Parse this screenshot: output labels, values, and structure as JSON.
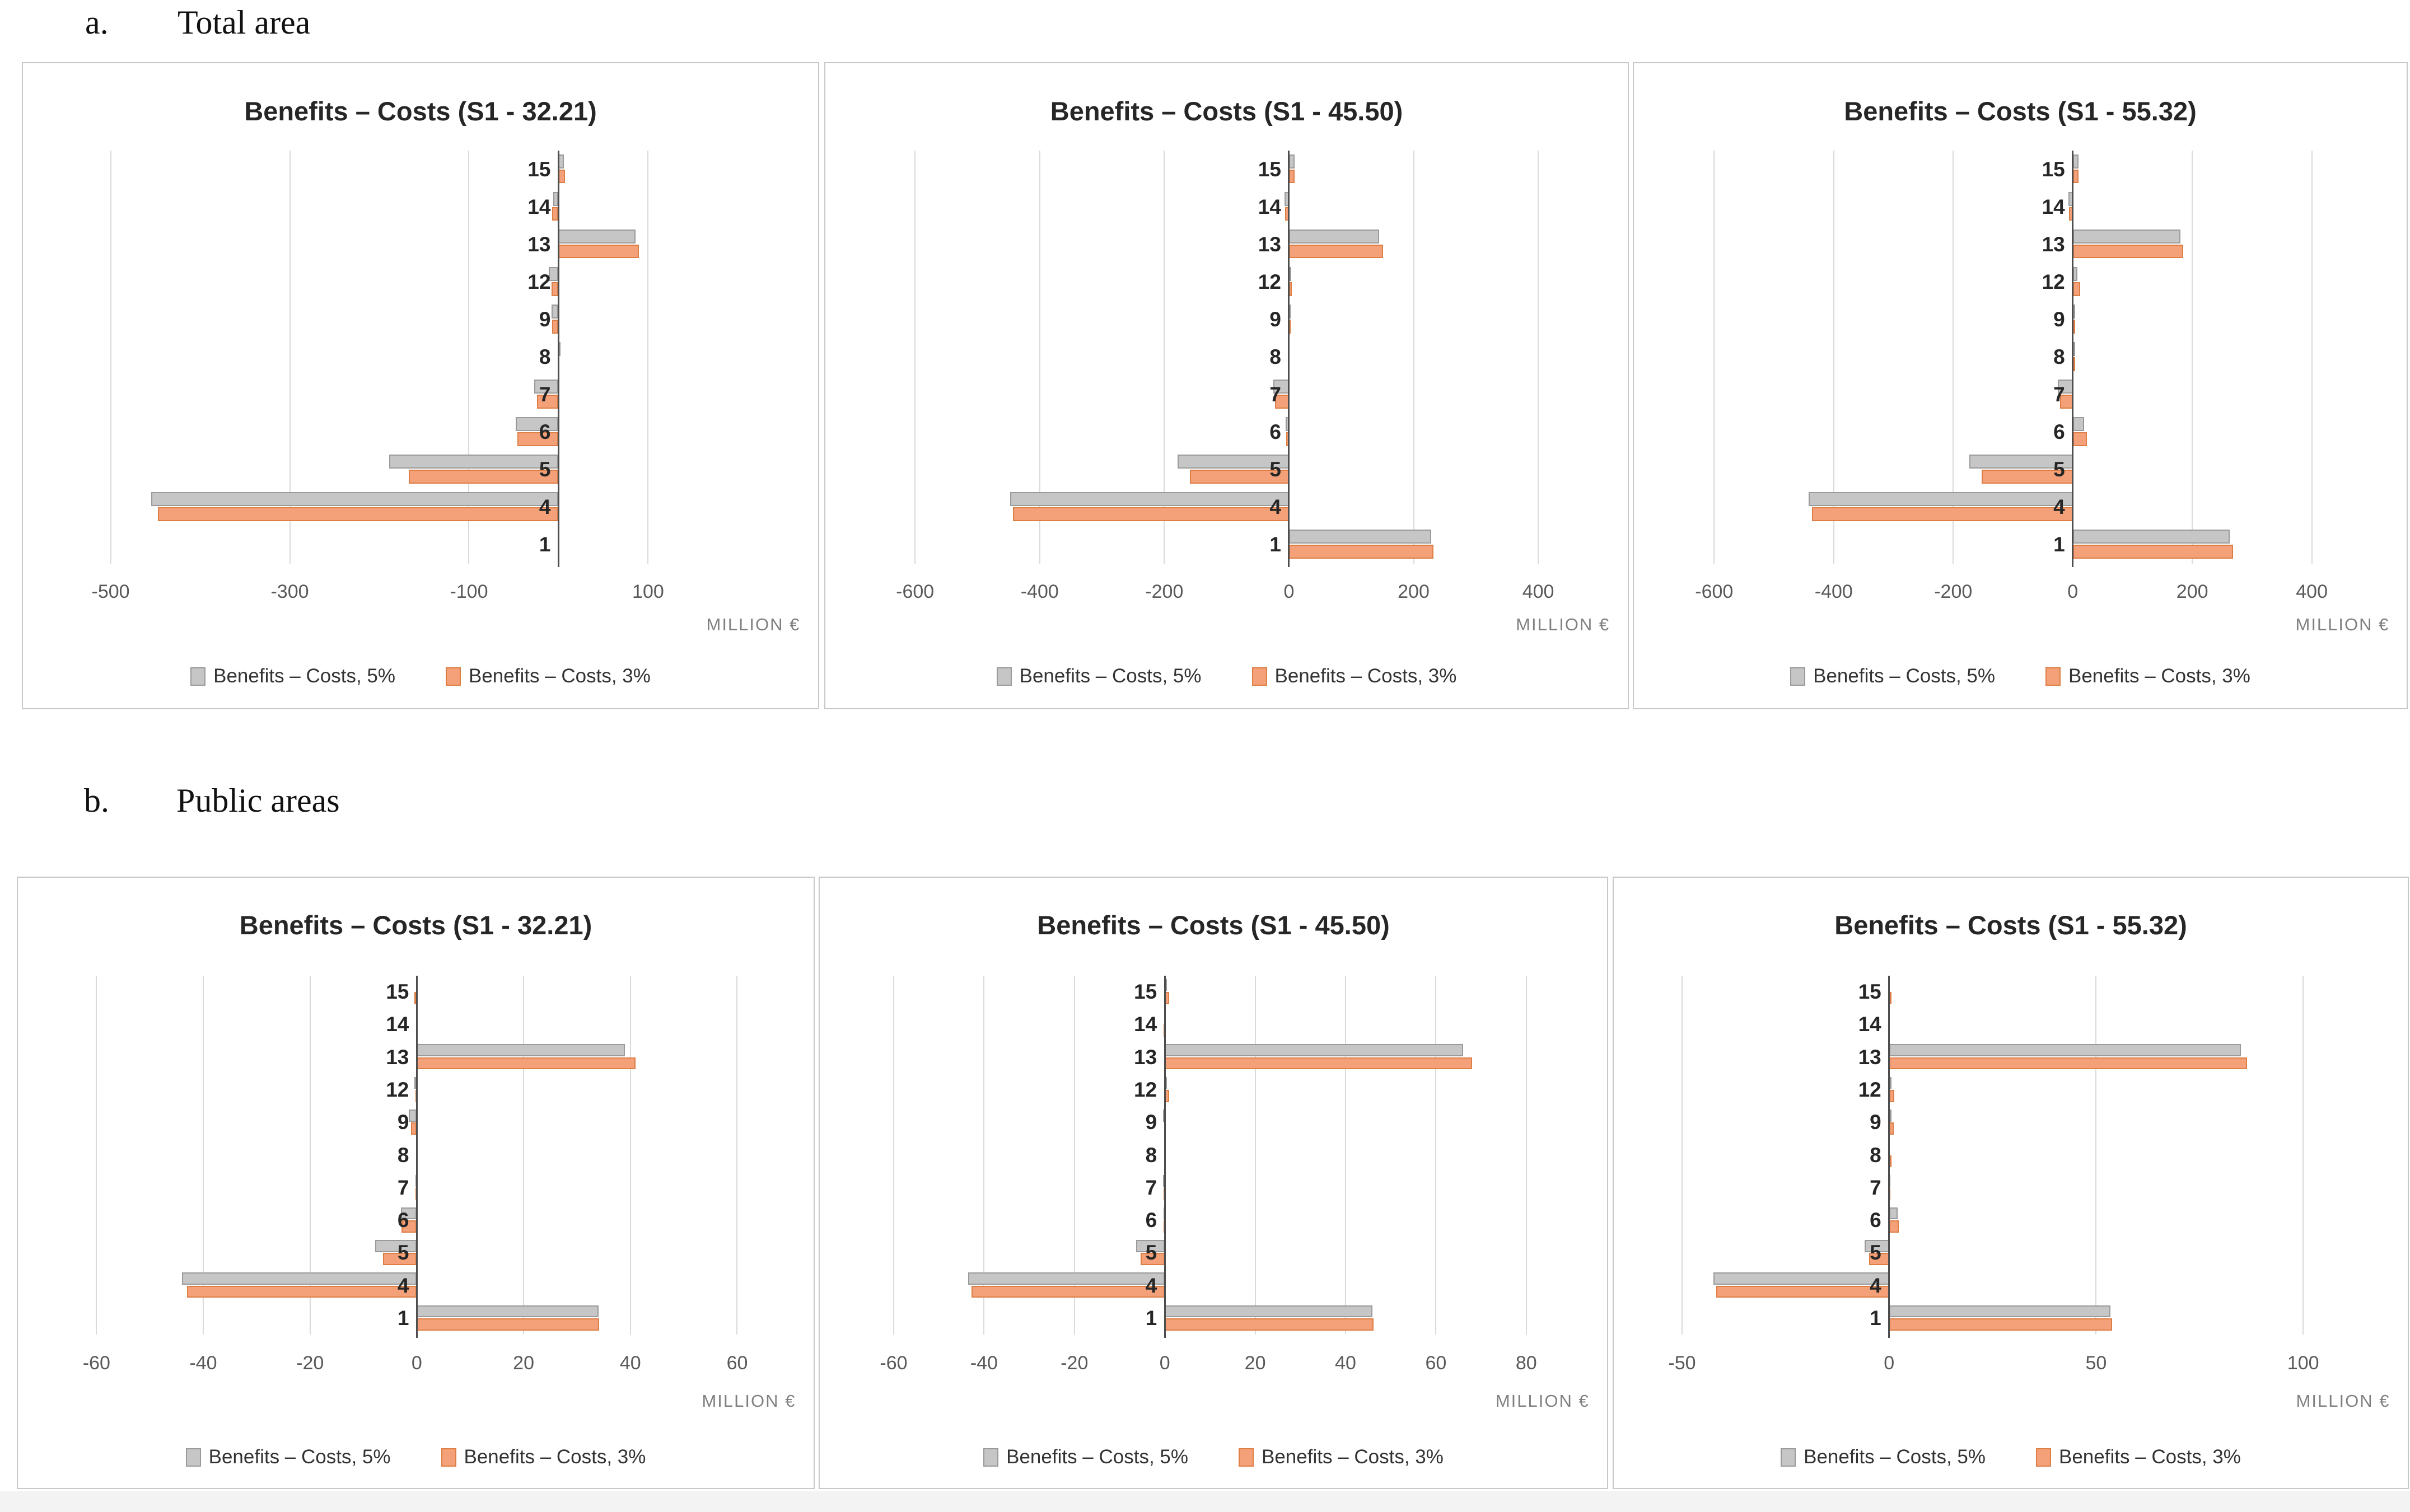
{
  "sections": [
    {
      "letter": "a.",
      "label": "Total area"
    },
    {
      "letter": "b.",
      "label": "Public areas"
    }
  ],
  "xlabel": "MILLION €",
  "legend": {
    "series1": "Benefits – Costs, 5%",
    "series2": "Benefits – Costs, 3%"
  },
  "colors": {
    "gray_fill": "#c6c6c6",
    "gray_border": "#9a9a9a",
    "orange_fill": "#f4a179",
    "orange_border": "#dd7e45",
    "gridline": "#dadada",
    "axis_line": "#4d4d4d",
    "tick_text": "#595959",
    "unit_text": "#808080",
    "title_text": "#262626"
  },
  "categories": [
    "15",
    "14",
    "13",
    "12",
    "9",
    "8",
    "7",
    "6",
    "5",
    "4",
    "1"
  ],
  "chart_data": [
    {
      "type": "bar",
      "orientation": "horizontal",
      "section": "a",
      "title": "Benefits – Costs (S1 - 32.21)",
      "xlabel": "MILLION €",
      "categories": [
        "15",
        "14",
        "13",
        "12",
        "9",
        "8",
        "7",
        "6",
        "5",
        "4",
        "1"
      ],
      "xlim": [
        -540,
        270
      ],
      "xticks": [
        -500,
        -300,
        -100,
        100
      ],
      "series": [
        {
          "name": "Benefits – Costs, 5%",
          "values": [
            6,
            -6,
            86,
            -11,
            -8,
            2,
            -27,
            -48,
            -189,
            -455,
            0
          ]
        },
        {
          "name": "Benefits – Costs, 3%",
          "values": [
            7,
            -7,
            90,
            -8,
            -7,
            0,
            -24,
            -46,
            -167,
            -447,
            0
          ]
        }
      ]
    },
    {
      "type": "bar",
      "orientation": "horizontal",
      "section": "a",
      "title": "Benefits – Costs (S1 - 45.50)",
      "xlabel": "MILLION €",
      "categories": [
        "15",
        "14",
        "13",
        "12",
        "9",
        "8",
        "7",
        "6",
        "5",
        "4",
        "1"
      ],
      "xlim": [
        -660,
        515
      ],
      "xticks": [
        -600,
        -400,
        -200,
        0,
        200,
        400
      ],
      "series": [
        {
          "name": "Benefits – Costs, 5%",
          "values": [
            9,
            -7,
            145,
            1,
            -1,
            0,
            -25,
            -5,
            -179,
            -447,
            228
          ]
        },
        {
          "name": "Benefits – Costs, 3%",
          "values": [
            9,
            -6,
            151,
            5,
            -1,
            0,
            -22,
            -4,
            -159,
            -443,
            232
          ]
        }
      ]
    },
    {
      "type": "bar",
      "orientation": "horizontal",
      "section": "a",
      "title": "Benefits – Costs (S1 - 55.32)",
      "xlabel": "MILLION €",
      "categories": [
        "15",
        "14",
        "13",
        "12",
        "9",
        "8",
        "7",
        "6",
        "5",
        "4",
        "1"
      ],
      "xlim": [
        -650,
        530
      ],
      "xticks": [
        -600,
        -400,
        -200,
        0,
        200,
        400
      ],
      "series": [
        {
          "name": "Benefits – Costs, 5%",
          "values": [
            10,
            -7,
            180,
            8,
            1,
            1,
            -25,
            19,
            -173,
            -442,
            263
          ]
        },
        {
          "name": "Benefits – Costs, 3%",
          "values": [
            10,
            -6,
            185,
            12,
            4,
            1,
            -21,
            24,
            -152,
            -436,
            268
          ]
        }
      ]
    },
    {
      "type": "bar",
      "orientation": "horizontal",
      "section": "b",
      "title": "Benefits – Costs (S1 - 32.21)",
      "xlabel": "MILLION €",
      "categories": [
        "15",
        "14",
        "13",
        "12",
        "9",
        "8",
        "7",
        "6",
        "5",
        "4",
        "1"
      ],
      "xlim": [
        -65,
        71
      ],
      "xticks": [
        -60,
        -40,
        -20,
        0,
        20,
        40,
        60
      ],
      "series": [
        {
          "name": "Benefits – Costs, 5%",
          "values": [
            0,
            0,
            39,
            -0.5,
            -1.5,
            0,
            -0.3,
            -3,
            -7.8,
            -44,
            34
          ]
        },
        {
          "name": "Benefits – Costs, 3%",
          "values": [
            -0.5,
            0,
            41,
            -0.3,
            -1.1,
            0,
            -0.3,
            -2.9,
            -6.3,
            -43,
            34.2
          ]
        }
      ]
    },
    {
      "type": "bar",
      "orientation": "horizontal",
      "section": "b",
      "title": "Benefits – Costs (S1 - 45.50)",
      "xlabel": "MILLION €",
      "categories": [
        "15",
        "14",
        "13",
        "12",
        "9",
        "8",
        "7",
        "6",
        "5",
        "4",
        "1"
      ],
      "xlim": [
        -65,
        94
      ],
      "xticks": [
        -60,
        -40,
        -20,
        0,
        20,
        40,
        60,
        80
      ],
      "series": [
        {
          "name": "Benefits – Costs, 5%",
          "values": [
            0.3,
            0,
            66,
            0.3,
            -0.4,
            0,
            -0.4,
            -0.3,
            -6.3,
            -43.5,
            46
          ]
        },
        {
          "name": "Benefits – Costs, 3%",
          "values": [
            1,
            -0.3,
            68,
            1,
            0,
            0,
            -0.3,
            -0.3,
            -5.4,
            -42.8,
            46.2
          ]
        }
      ]
    },
    {
      "type": "bar",
      "orientation": "horizontal",
      "section": "b",
      "title": "Benefits – Costs (S1 - 55.32)",
      "xlabel": "MILLION €",
      "categories": [
        "15",
        "14",
        "13",
        "12",
        "9",
        "8",
        "7",
        "6",
        "5",
        "4",
        "1"
      ],
      "xlim": [
        -54,
        121
      ],
      "xticks": [
        -50,
        0,
        50,
        100
      ],
      "series": [
        {
          "name": "Benefits – Costs, 5%",
          "values": [
            0,
            0,
            85,
            0.5,
            0.3,
            0,
            -0.3,
            2,
            -5.9,
            -42.4,
            53.4
          ]
        },
        {
          "name": "Benefits – Costs, 3%",
          "values": [
            0.5,
            0,
            86.5,
            1.3,
            1.1,
            0.5,
            -0.3,
            2.4,
            -4.8,
            -41.8,
            53.9
          ]
        }
      ]
    }
  ]
}
